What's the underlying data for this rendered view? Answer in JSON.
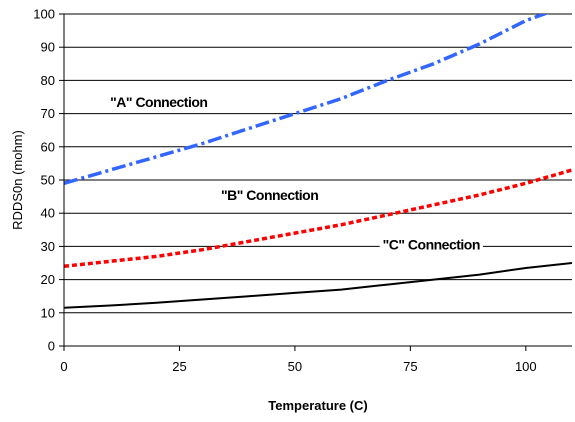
{
  "chart_data": {
    "type": "line",
    "title": "",
    "xlabel": "Temperature (C)",
    "ylabel": "RDDS0n (mohm)",
    "xlim": [
      0,
      110
    ],
    "ylim": [
      0,
      100
    ],
    "x_ticks": [
      "0",
      "25",
      "50",
      "75",
      "100"
    ],
    "y_ticks": [
      "0",
      "10",
      "20",
      "30",
      "40",
      "50",
      "60",
      "70",
      "80",
      "90",
      "100"
    ],
    "grid": "horizontal",
    "legend": "none",
    "series": [
      {
        "label": "\"A\" Connection",
        "color": "#3366ff",
        "line_style": "dash-dot",
        "x": [
          0,
          10,
          20,
          30,
          40,
          50,
          60,
          70,
          80,
          90,
          100,
          110
        ],
        "y": [
          49,
          53,
          57,
          61,
          65.5,
          70,
          74.5,
          80,
          85,
          91,
          98,
          103
        ]
      },
      {
        "label": "\"B\" Connection",
        "color": "#ff0000",
        "line_style": "dotted",
        "x": [
          0,
          10,
          20,
          30,
          40,
          50,
          60,
          70,
          80,
          90,
          100,
          110
        ],
        "y": [
          24,
          25.5,
          27,
          29,
          31.5,
          34,
          36.5,
          39.5,
          42.5,
          45.5,
          49,
          53
        ]
      },
      {
        "label": "\"C\" Connection",
        "color": "#000000",
        "line_style": "solid",
        "x": [
          0,
          10,
          20,
          30,
          40,
          50,
          60,
          70,
          80,
          90,
          100,
          110
        ],
        "y": [
          11.5,
          12.2,
          13,
          14,
          15,
          16,
          17,
          18.5,
          20,
          21.5,
          23.5,
          25
        ]
      }
    ],
    "annotations": [
      {
        "text": "\"A\" Connection",
        "x": 10,
        "y": 72,
        "series": 0
      },
      {
        "text": "\"B\" Connection",
        "x": 34,
        "y": 44,
        "series": 1
      },
      {
        "text": "\"C\" Connection",
        "x": 69,
        "y": 29,
        "series": 2
      }
    ]
  }
}
